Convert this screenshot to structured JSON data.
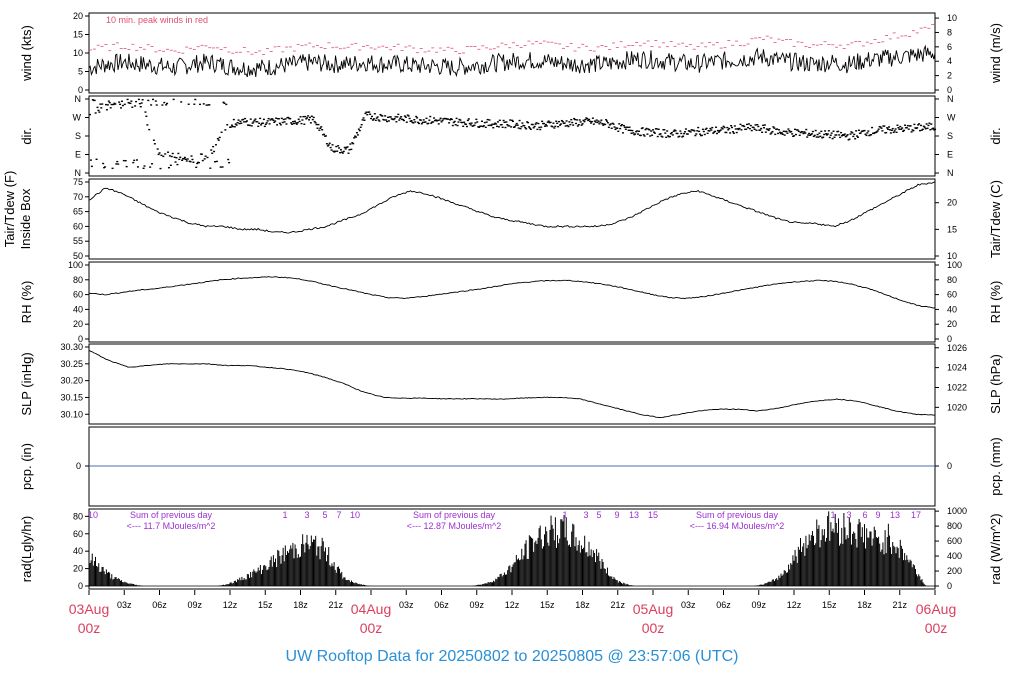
{
  "footer_title": "UW Rooftop Data for 20250802  to  20250805 @ 23:57:06  (UTC)",
  "colors": {
    "peak": "#e0506e",
    "pcp_line": "#4a6fb0",
    "rad_text": "#9b30d0",
    "date": "#d9405f",
    "title": "#2a8fd6"
  },
  "date_labels": [
    {
      "day": "03Aug",
      "hour": "00z"
    },
    {
      "day": "04Aug",
      "hour": "00z"
    },
    {
      "day": "05Aug",
      "hour": "00z"
    },
    {
      "day": "06Aug",
      "hour": "00z"
    }
  ],
  "time_ticks": [
    "03z",
    "06z",
    "09z",
    "12z",
    "15z",
    "18z",
    "21z",
    "03z",
    "06z",
    "09z",
    "12z",
    "15z",
    "18z",
    "21z",
    "03z",
    "06z",
    "09z",
    "12z",
    "15z",
    "18z",
    "21z"
  ],
  "chart_data": [
    {
      "type": "line",
      "id": "wind",
      "ylabel_left": "wind (kts)",
      "ylabel_right": "wind (m/s)",
      "annotation": "10 min. peak winds in red",
      "ylim": [
        0,
        20
      ],
      "yticks_left": [
        0,
        5,
        10,
        15,
        20
      ],
      "yticks_right": [
        0,
        2,
        4,
        6,
        8,
        10
      ],
      "series": [
        {
          "values": [
            6,
            7,
            7.5,
            7,
            6.5,
            6,
            7,
            7.5,
            6.5,
            6,
            6,
            6.5,
            7,
            7.5,
            7,
            7,
            7.5,
            7,
            7,
            6.5,
            6.5,
            6,
            6.5,
            7,
            7.5,
            8,
            8,
            7.5,
            7,
            7,
            7,
            8,
            8.5,
            8,
            7.5,
            7,
            7.5,
            8,
            8.5,
            9,
            8,
            7.5,
            7,
            7.5,
            7,
            8,
            8.5,
            9,
            9.5,
            10
          ]
        },
        {
          "values": [
            11,
            11.5,
            12,
            11.5,
            11,
            10.5,
            11.5,
            12,
            11,
            10.5,
            10,
            11,
            11.5,
            12,
            12,
            11.5,
            12,
            11.5,
            11.5,
            11,
            11,
            10.5,
            11,
            11.5,
            12,
            12.5,
            12.5,
            12,
            11.5,
            11.5,
            11.5,
            12.5,
            13,
            12.5,
            12,
            11.5,
            12,
            12.5,
            13,
            14,
            13,
            12.5,
            12,
            12.5,
            12,
            13,
            14,
            15,
            16,
            17
          ]
        }
      ]
    },
    {
      "type": "scatter",
      "id": "dir",
      "ylabel_left": "dir.",
      "ylabel_right": "dir.",
      "yticks_left": [
        "N",
        "E",
        "S",
        "W",
        "N"
      ],
      "yticks_right": [
        "N",
        "E",
        "S",
        "W",
        "N"
      ],
      "ylim": [
        0,
        360
      ],
      "series": [
        {
          "values": [
            300,
            320,
            340,
            330,
            90,
            80,
            70,
            90,
            240,
            250,
            245,
            250,
            255,
            260,
            120,
            110,
            280,
            270,
            265,
            260,
            255,
            250,
            245,
            240,
            240,
            235,
            230,
            240,
            245,
            250,
            240,
            210,
            200,
            195,
            190,
            200,
            205,
            210,
            220,
            215,
            200,
            195,
            190,
            185,
            180,
            200,
            210,
            215,
            220,
            225
          ]
        }
      ]
    },
    {
      "type": "line",
      "id": "temp",
      "ylabel_left": "Tair/Tdew (F)",
      "ylabel_left2": "Inside Box",
      "ylabel_right": "Tair/Tdew (C)",
      "ylim": [
        50,
        75
      ],
      "yticks_left": [
        50,
        55,
        60,
        65,
        70,
        75
      ],
      "yticks_right": [
        10,
        15,
        20
      ],
      "series": [
        {
          "values": [
            69,
            73,
            71,
            68,
            65,
            63,
            61,
            60,
            60,
            59,
            59,
            58,
            58,
            59,
            60,
            62,
            64,
            67,
            70,
            72,
            71,
            69,
            67,
            65,
            63,
            62,
            61,
            60,
            60,
            60,
            60,
            61,
            63,
            66,
            69,
            71,
            72,
            70,
            68,
            66,
            64,
            62,
            61,
            61,
            60,
            62,
            65,
            68,
            71,
            74,
            75
          ]
        }
      ]
    },
    {
      "type": "line",
      "id": "rh",
      "ylabel_left": "RH (%)",
      "ylabel_right": "RH (%)",
      "ylim": [
        0,
        100
      ],
      "yticks_left": [
        0,
        20,
        40,
        60,
        80,
        100
      ],
      "yticks_right": [
        0,
        20,
        40,
        60,
        80,
        100
      ],
      "series": [
        {
          "values": [
            62,
            60,
            63,
            66,
            68,
            71,
            74,
            77,
            80,
            82,
            83,
            84,
            83,
            80,
            75,
            70,
            65,
            60,
            56,
            55,
            57,
            60,
            63,
            66,
            69,
            73,
            76,
            78,
            79,
            79,
            77,
            74,
            70,
            65,
            60,
            56,
            55,
            57,
            61,
            65,
            69,
            73,
            76,
            78,
            79,
            78,
            74,
            68,
            60,
            52,
            45,
            42
          ]
        }
      ]
    },
    {
      "type": "line",
      "id": "slp",
      "ylabel_left": "SLP (inHg)",
      "ylabel_right": "SLP (hPa)",
      "ylim": [
        30.08,
        30.3
      ],
      "yticks_left": [
        30.1,
        30.15,
        30.2,
        30.25,
        30.3
      ],
      "yticks_right": [
        1020,
        1022,
        1024,
        1026
      ],
      "series": [
        {
          "values": [
            30.29,
            30.26,
            30.24,
            30.245,
            30.25,
            30.25,
            30.25,
            30.245,
            30.245,
            30.24,
            30.235,
            30.225,
            30.21,
            30.19,
            30.165,
            30.15,
            30.148,
            30.148,
            30.146,
            30.146,
            30.146,
            30.145,
            30.148,
            30.15,
            30.15,
            30.145,
            30.13,
            30.115,
            30.1,
            30.09,
            30.1,
            30.11,
            30.115,
            30.115,
            30.11,
            30.118,
            30.13,
            30.14,
            30.145,
            30.14,
            30.125,
            30.11,
            30.1,
            30.098
          ]
        }
      ]
    },
    {
      "type": "line",
      "id": "pcp",
      "ylabel_left": "pcp. (in)",
      "ylabel_right": "pcp. (mm)",
      "yticks_left": [
        0
      ],
      "yticks_right": [
        0
      ],
      "series": [
        {
          "values": [
            0,
            0
          ]
        }
      ]
    },
    {
      "type": "bar",
      "id": "rad",
      "ylabel_left": "rad(Lgly/hr)",
      "ylabel_right": "rad (W/m^2)",
      "ylim": [
        0,
        85
      ],
      "yticks_left": [
        0,
        20,
        40,
        60,
        80
      ],
      "yticks_right": [
        0,
        200,
        400,
        600,
        800,
        1000
      ],
      "summaries": [
        {
          "label": "Sum of previous day",
          "value": "<--- 11.7 MJoules/m^2"
        },
        {
          "label": "Sum of previous day",
          "value": "<--- 12.87 MJoules/m^2"
        },
        {
          "label": "Sum of previous day",
          "value": "<--- 16.94 MJoules/m^2"
        }
      ],
      "uv_labels": [
        "10",
        "1",
        "3",
        "5",
        "7",
        "10",
        "1",
        "3",
        "5",
        "9",
        "13",
        "15",
        "1",
        "3",
        "6",
        "9",
        "13",
        "17"
      ],
      "days": [
        {
          "values": [
            40,
            30,
            18,
            10,
            5,
            2,
            0,
            0,
            0,
            0,
            0,
            0,
            0,
            0,
            0,
            2,
            6,
            12,
            18,
            25,
            33,
            42,
            50,
            55,
            60,
            58,
            50,
            30,
            12,
            5,
            2,
            0
          ]
        },
        {
          "values": [
            0,
            0,
            0,
            0,
            0,
            0,
            0,
            0,
            0,
            0,
            0,
            0,
            2,
            5,
            12,
            22,
            35,
            50,
            65,
            75,
            78,
            80,
            72,
            60,
            55,
            40,
            20,
            8,
            3,
            0,
            0,
            0
          ]
        },
        {
          "values": [
            0,
            0,
            0,
            0,
            0,
            0,
            0,
            0,
            0,
            0,
            0,
            0,
            2,
            6,
            14,
            30,
            50,
            68,
            78,
            82,
            85,
            83,
            80,
            75,
            70,
            60,
            70,
            55,
            40,
            20,
            0,
            0
          ]
        }
      ]
    }
  ]
}
